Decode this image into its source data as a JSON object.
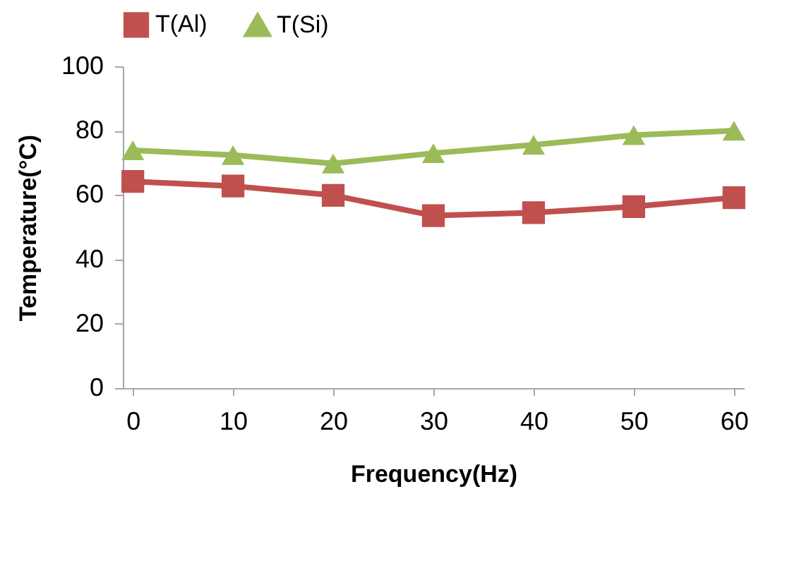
{
  "chart_data": {
    "type": "line",
    "xlabel": "Frequency(Hz)",
    "ylabel": "Temperature(°C)",
    "categories": [
      "0",
      "10",
      "20",
      "30",
      "40",
      "50",
      "60"
    ],
    "series": [
      {
        "name": "T(Al)",
        "color": "#c0504d",
        "marker": "square",
        "values": [
          64.2,
          62.8,
          59.9,
          53.6,
          54.5,
          56.4,
          59.2
        ]
      },
      {
        "name": "T(Si)",
        "color": "#9bbb59",
        "marker": "triangle",
        "values": [
          73.9,
          72.4,
          69.8,
          73,
          75.6,
          78.6,
          80
        ]
      }
    ],
    "ylim": [
      0,
      100
    ],
    "yticks": [
      0,
      20,
      40,
      60,
      80,
      100
    ],
    "grid": false,
    "legend": "top",
    "line_style": "solid"
  }
}
